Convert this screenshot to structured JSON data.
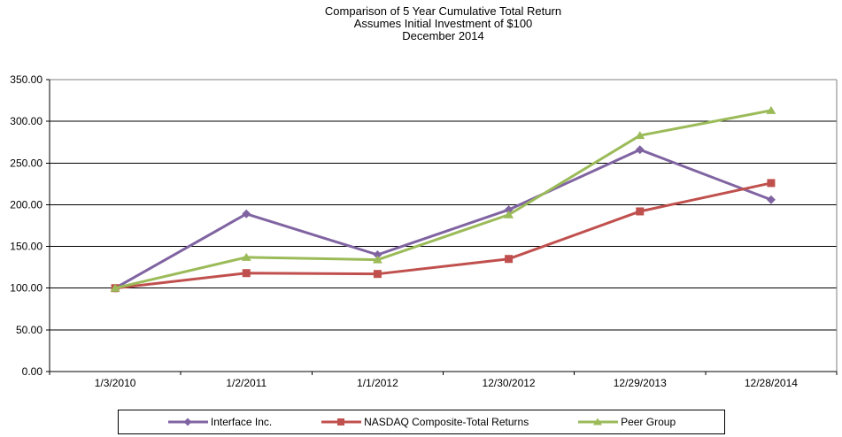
{
  "title": {
    "line1": "Comparison of 5 Year Cumulative Total Return",
    "line2": "Assumes Initial Investment of $100",
    "line3": "December 2014"
  },
  "chart_data": {
    "type": "line",
    "title": "Comparison of 5 Year Cumulative Total Return",
    "subtitle": "Assumes Initial Investment of $100",
    "date_label": "December 2014",
    "categories": [
      "1/3/2010",
      "1/2/2011",
      "1/1/2012",
      "12/30/2012",
      "12/29/2013",
      "12/28/2014"
    ],
    "series": [
      {
        "name": "Interface Inc.",
        "color": "#8064A2",
        "marker": "diamond",
        "values": [
          100,
          189,
          140,
          194,
          266,
          206
        ]
      },
      {
        "name": "NASDAQ Composite-Total Returns",
        "color": "#C0504D",
        "marker": "square",
        "values": [
          100,
          118,
          117,
          135,
          192,
          226
        ]
      },
      {
        "name": "Peer Group",
        "color": "#9BBB59",
        "marker": "triangle",
        "values": [
          100,
          137,
          134,
          188,
          283,
          313
        ]
      }
    ],
    "ylim": [
      0,
      350
    ],
    "ytick_step": 50,
    "ytick_labels": [
      "0.00",
      "50.00",
      "100.00",
      "150.00",
      "200.00",
      "250.00",
      "300.00",
      "350.00"
    ],
    "xlabel": "",
    "ylabel": "",
    "grid": true,
    "legend_position": "bottom"
  },
  "colors": {
    "axis": "#000000",
    "gridline": "#000000",
    "plot_border": "#808080",
    "text": "#000000",
    "background": "#ffffff"
  }
}
